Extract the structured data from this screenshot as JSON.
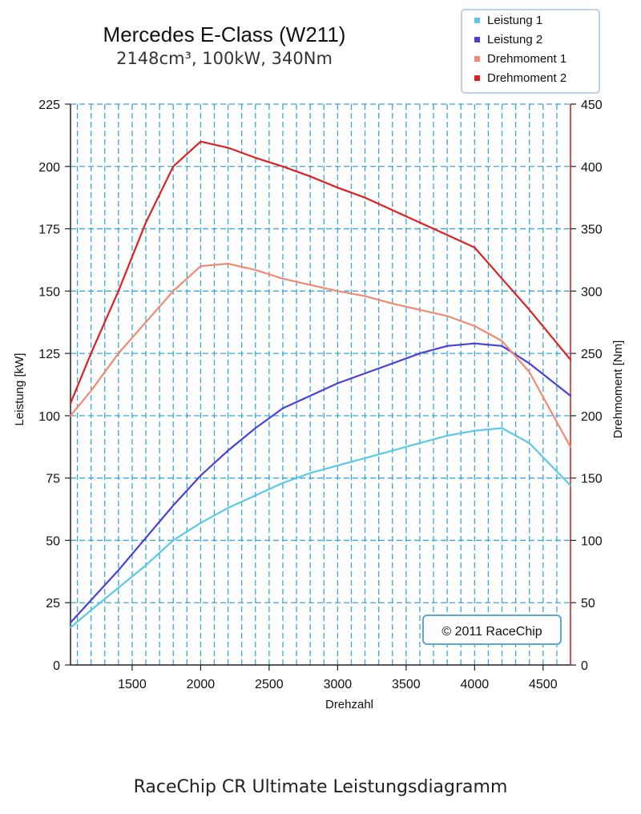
{
  "caption": "RaceChip CR Ultimate Leistungsdiagramm",
  "copyright": "© 2011 RaceChip",
  "chart_data": {
    "type": "line",
    "title": "Mercedes E-Class (W211)",
    "subtitle": "2148cm³, 100kW, 340Nm",
    "xlabel": "Drehzahl",
    "ylabel": "Leistung [kW]",
    "y2label": "Drehmoment [Nm]",
    "xlim": [
      1050,
      4700
    ],
    "ylim": [
      0,
      225
    ],
    "y2lim": [
      0,
      450
    ],
    "xticks": [
      1500,
      2000,
      2500,
      3000,
      3500,
      4000,
      4500
    ],
    "yticks": [
      0,
      25,
      50,
      75,
      100,
      125,
      150,
      175,
      200,
      225
    ],
    "y2ticks": [
      0,
      50,
      100,
      150,
      200,
      250,
      300,
      350,
      400,
      450
    ],
    "grid": true,
    "legend_position": "top-right",
    "series": [
      {
        "name": "Leistung 1",
        "axis": "left",
        "color": "#5bc8e8",
        "x": [
          1050,
          1200,
          1400,
          1600,
          1800,
          2000,
          2200,
          2400,
          2600,
          2800,
          3000,
          3200,
          3400,
          3600,
          3800,
          4000,
          4200,
          4400,
          4700
        ],
        "y": [
          15,
          22,
          31,
          40,
          50,
          57,
          63,
          68,
          73,
          77,
          80,
          83,
          86,
          89,
          92,
          94,
          95,
          89,
          72
        ]
      },
      {
        "name": "Leistung 2",
        "axis": "left",
        "color": "#4a3fd8",
        "x": [
          1050,
          1200,
          1400,
          1600,
          1800,
          2000,
          2200,
          2400,
          2600,
          2800,
          3000,
          3200,
          3400,
          3600,
          3800,
          4000,
          4200,
          4400,
          4700
        ],
        "y": [
          17,
          26,
          38,
          51,
          64,
          76,
          86,
          95,
          103,
          108,
          113,
          117,
          121,
          125,
          128,
          129,
          128,
          121,
          108
        ]
      },
      {
        "name": "Drehmoment 1",
        "axis": "right",
        "color": "#f08a70",
        "x": [
          1050,
          1200,
          1400,
          1600,
          1800,
          2000,
          2200,
          2400,
          2600,
          2800,
          3000,
          3200,
          3400,
          3600,
          3800,
          4000,
          4200,
          4400,
          4700
        ],
        "y": [
          200,
          220,
          250,
          275,
          300,
          320,
          322,
          317,
          310,
          305,
          300,
          296,
          290,
          285,
          280,
          272,
          260,
          235,
          175
        ]
      },
      {
        "name": "Drehmoment 2",
        "axis": "right",
        "color": "#e02020",
        "x": [
          1050,
          1200,
          1400,
          1600,
          1800,
          2000,
          2200,
          2400,
          2600,
          2800,
          3000,
          3200,
          3400,
          3600,
          3800,
          4000,
          4200,
          4400,
          4700
        ],
        "y": [
          210,
          250,
          300,
          355,
          400,
          420,
          415,
          407,
          400,
          392,
          383,
          375,
          365,
          355,
          345,
          335,
          310,
          285,
          245
        ]
      }
    ]
  }
}
